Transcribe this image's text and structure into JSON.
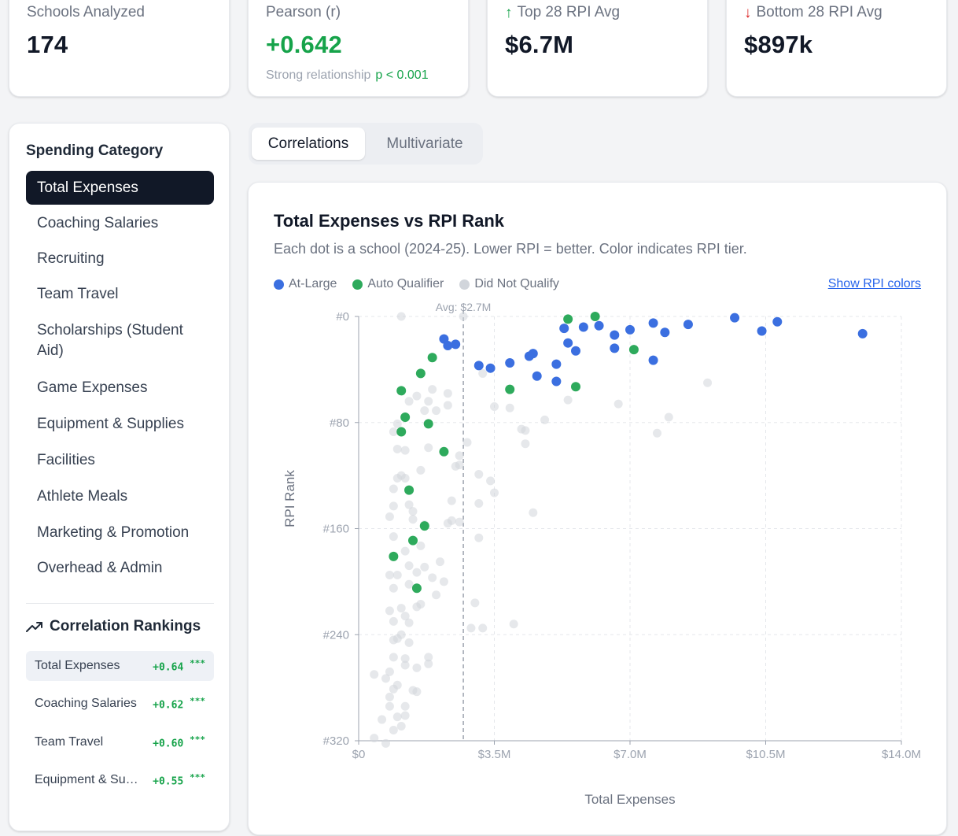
{
  "stats": [
    {
      "label": "Schools Analyzed",
      "value": "174",
      "arrow": "",
      "sub": "",
      "p": ""
    },
    {
      "label": "Pearson (r)",
      "value": "+0.642",
      "arrow": "",
      "sub": "Strong relationship",
      "p": "p < 0.001"
    },
    {
      "label": "Top 28 RPI Avg",
      "value": "$6.7M",
      "arrow": "up",
      "sub": "",
      "p": ""
    },
    {
      "label": "Bottom 28 RPI Avg",
      "value": "$897k",
      "arrow": "down",
      "sub": "",
      "p": ""
    }
  ],
  "sidebar": {
    "title": "Spending Category",
    "categories": [
      "Total Expenses",
      "Coaching Salaries",
      "Recruiting",
      "Team Travel",
      "Scholarships (Student Aid)",
      "Game Expenses",
      "Equipment & Supplies",
      "Facilities",
      "Athlete Meals",
      "Marketing & Promotion",
      "Overhead & Admin"
    ],
    "active_index": 0,
    "rankings_title": "Correlation Rankings",
    "rankings": [
      {
        "name": "Total Expenses",
        "value": "+0.64",
        "sig": "***"
      },
      {
        "name": "Coaching Salaries",
        "value": "+0.62",
        "sig": "***"
      },
      {
        "name": "Team Travel",
        "value": "+0.60",
        "sig": "***"
      },
      {
        "name": "Equipment & Supplies",
        "value": "+0.55",
        "sig": "***"
      }
    ]
  },
  "tabs": [
    {
      "label": "Correlations",
      "active": true
    },
    {
      "label": "Multivariate",
      "active": false
    }
  ],
  "chart_header": {
    "title": "Total Expenses vs RPI Rank",
    "subtitle": "Each dot is a school (2024-25). Lower RPI = better. Color indicates RPI tier.",
    "toggle_label": "Show RPI colors"
  },
  "colors": {
    "at_large": "#3b6fe0",
    "auto_qualifier": "#2eaa5c",
    "did_not_qualify": "#d1d5db",
    "positive": "#16a34a",
    "negative": "#dc2626",
    "dark": "#111827"
  },
  "chart_data": {
    "type": "scatter",
    "title": "Total Expenses vs RPI Rank",
    "xlabel": "Total Expenses",
    "ylabel": "RPI Rank",
    "xlim": [
      0,
      14.0
    ],
    "ylim": [
      0,
      320
    ],
    "y_inverted": true,
    "x_unit": "$M",
    "x_ticks": [
      "$0",
      "$3.5M",
      "$7.0M",
      "$10.5M",
      "$14.0M"
    ],
    "y_ticks": [
      "#0",
      "#80",
      "#160",
      "#240",
      "#320"
    ],
    "grid": true,
    "reference_line": {
      "x": 2.7,
      "label": "Avg: $2.7M"
    },
    "legend": [
      "At-Large",
      "Auto Qualifier",
      "Did Not Qualify"
    ],
    "series": [
      {
        "name": "At-Large",
        "points": [
          [
            9.7,
            1
          ],
          [
            10.8,
            4
          ],
          [
            13.0,
            13
          ],
          [
            10.4,
            11
          ],
          [
            8.5,
            6
          ],
          [
            7.6,
            5
          ],
          [
            7.9,
            12
          ],
          [
            7.6,
            33
          ],
          [
            7.0,
            10
          ],
          [
            6.6,
            14
          ],
          [
            6.2,
            7
          ],
          [
            6.6,
            24
          ],
          [
            5.8,
            8
          ],
          [
            5.3,
            9
          ],
          [
            5.4,
            20
          ],
          [
            5.6,
            26
          ],
          [
            4.5,
            28
          ],
          [
            4.4,
            30
          ],
          [
            3.9,
            35
          ],
          [
            3.4,
            39
          ],
          [
            3.1,
            37
          ],
          [
            5.1,
            36
          ],
          [
            4.6,
            45
          ],
          [
            5.1,
            49
          ],
          [
            2.2,
            17
          ],
          [
            2.3,
            22
          ],
          [
            2.5,
            21
          ]
        ]
      },
      {
        "name": "Auto Qualifier",
        "points": [
          [
            6.1,
            0
          ],
          [
            5.4,
            2
          ],
          [
            7.1,
            25
          ],
          [
            5.6,
            53
          ],
          [
            3.9,
            55
          ],
          [
            1.9,
            31
          ],
          [
            1.6,
            43
          ],
          [
            1.1,
            56
          ],
          [
            1.2,
            76
          ],
          [
            1.1,
            87
          ],
          [
            1.8,
            81
          ],
          [
            2.2,
            102
          ],
          [
            1.3,
            131
          ],
          [
            1.7,
            158
          ],
          [
            1.4,
            169
          ],
          [
            0.9,
            181
          ],
          [
            1.5,
            205
          ]
        ]
      },
      {
        "name": "Did Not Qualify",
        "points": [
          [
            1.1,
            0
          ],
          [
            2.7,
            0
          ],
          [
            1.9,
            55
          ],
          [
            2.3,
            58
          ],
          [
            1.5,
            60
          ],
          [
            1.3,
            64
          ],
          [
            1.8,
            64
          ],
          [
            2.3,
            67
          ],
          [
            3.2,
            43
          ],
          [
            1.7,
            71
          ],
          [
            2.0,
            71
          ],
          [
            3.5,
            68
          ],
          [
            3.9,
            69
          ],
          [
            5.4,
            63
          ],
          [
            6.7,
            66
          ],
          [
            4.8,
            78
          ],
          [
            8.0,
            76
          ],
          [
            9.0,
            50
          ],
          [
            7.7,
            88
          ],
          [
            4.2,
            85
          ],
          [
            4.3,
            86
          ],
          [
            4.3,
            96
          ],
          [
            1.0,
            81
          ],
          [
            0.9,
            87
          ],
          [
            1.0,
            100
          ],
          [
            1.2,
            101
          ],
          [
            1.8,
            99
          ],
          [
            2.8,
            95
          ],
          [
            2.6,
            105
          ],
          [
            1.1,
            120
          ],
          [
            0.9,
            130
          ],
          [
            1.6,
            116
          ],
          [
            2.5,
            113
          ],
          [
            2.6,
            112
          ],
          [
            3.1,
            119
          ],
          [
            3.4,
            124
          ],
          [
            1.0,
            122
          ],
          [
            1.2,
            122
          ],
          [
            0.9,
            143
          ],
          [
            1.3,
            142
          ],
          [
            2.4,
            139
          ],
          [
            3.5,
            133
          ],
          [
            3.1,
            141
          ],
          [
            1.4,
            147
          ],
          [
            2.4,
            154
          ],
          [
            0.8,
            151
          ],
          [
            1.4,
            153
          ],
          [
            1.7,
            157
          ],
          [
            2.3,
            156
          ],
          [
            2.6,
            155
          ],
          [
            1.6,
            173
          ],
          [
            3.1,
            167
          ],
          [
            4.5,
            148
          ],
          [
            0.9,
            166
          ],
          [
            1.2,
            177
          ],
          [
            1.3,
            188
          ],
          [
            1.7,
            189
          ],
          [
            0.8,
            195
          ],
          [
            1.5,
            193
          ],
          [
            1.9,
            197
          ],
          [
            2.1,
            185
          ],
          [
            1.3,
            202
          ],
          [
            2.2,
            200
          ],
          [
            1.6,
            217
          ],
          [
            1.1,
            220
          ],
          [
            1.5,
            219
          ],
          [
            3.0,
            216
          ],
          [
            0.8,
            222
          ],
          [
            0.9,
            230
          ],
          [
            1.2,
            226
          ],
          [
            1.3,
            231
          ],
          [
            1.1,
            240
          ],
          [
            1.0,
            243
          ],
          [
            1.3,
            246
          ],
          [
            0.9,
            244
          ],
          [
            1.2,
            258
          ],
          [
            1.2,
            263
          ],
          [
            1.8,
            257
          ],
          [
            1.8,
            262
          ],
          [
            2.9,
            235
          ],
          [
            3.2,
            235
          ],
          [
            4.0,
            232
          ],
          [
            0.9,
            257
          ],
          [
            0.7,
            273
          ],
          [
            0.9,
            281
          ],
          [
            1.0,
            278
          ],
          [
            0.8,
            294
          ],
          [
            1.2,
            294
          ],
          [
            0.8,
            287
          ],
          [
            1.5,
            283
          ],
          [
            1.0,
            302
          ],
          [
            0.6,
            304
          ],
          [
            1.2,
            301
          ],
          [
            1.1,
            309
          ],
          [
            0.4,
            318
          ],
          [
            0.7,
            322
          ],
          [
            0.9,
            312
          ],
          [
            0.4,
            270
          ],
          [
            0.8,
            268
          ],
          [
            1.4,
            282
          ],
          [
            1.5,
            265
          ],
          [
            0.9,
            205
          ],
          [
            2.0,
            210
          ],
          [
            1.0,
            195
          ]
        ]
      }
    ]
  }
}
